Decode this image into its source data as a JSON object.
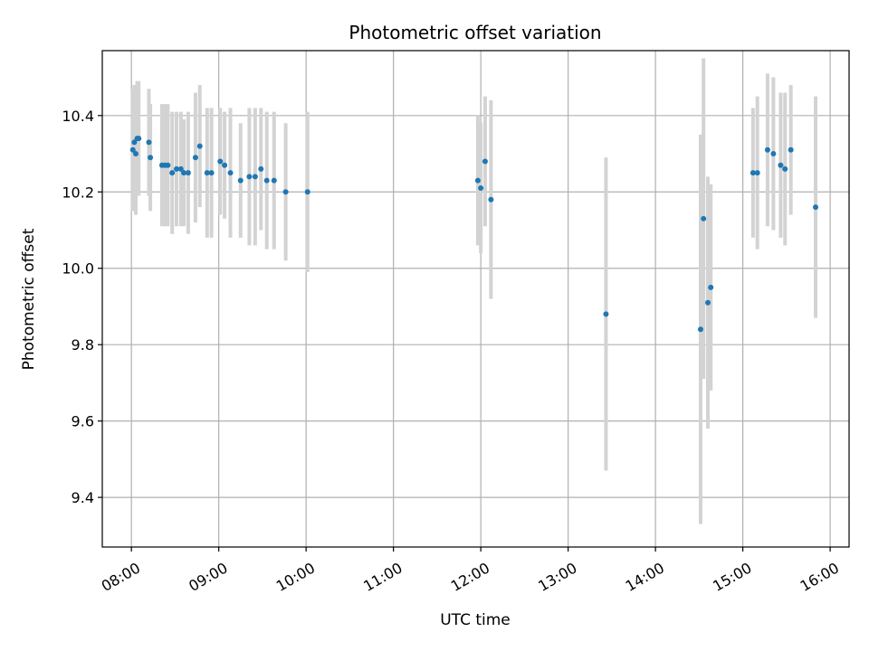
{
  "chart_data": {
    "type": "scatter",
    "title": "Photometric offset variation",
    "xlabel": "UTC time",
    "ylabel": "Photometric offset",
    "x_axis_type": "time",
    "xlim": [
      "07:40",
      "16:13"
    ],
    "ylim": [
      9.27,
      10.57
    ],
    "x_ticks": [
      "08:00",
      "09:00",
      "10:00",
      "11:00",
      "12:00",
      "13:00",
      "14:00",
      "15:00",
      "16:00"
    ],
    "y_ticks": [
      "9.4",
      "9.6",
      "9.8",
      "10.0",
      "10.2",
      "10.4"
    ],
    "grid": true,
    "colors": {
      "point": "#1f77b4",
      "errorbar": "#d3d3d3",
      "grid": "#b0b0b0"
    },
    "series": [
      {
        "x": [
          "08:01",
          "08:02",
          "08:03",
          "08:04",
          "08:05",
          "08:12",
          "08:13",
          "08:21",
          "08:23",
          "08:25",
          "08:28",
          "08:31",
          "08:34",
          "08:36",
          "08:39",
          "08:44",
          "08:47",
          "08:52",
          "08:55",
          "09:01",
          "09:04",
          "09:08",
          "09:15",
          "09:21",
          "09:25",
          "09:29",
          "09:33",
          "09:38",
          "09:46",
          "10:01"
        ],
        "y": [
          10.31,
          10.33,
          10.3,
          10.34,
          10.34,
          10.33,
          10.29,
          10.27,
          10.27,
          10.27,
          10.25,
          10.26,
          10.26,
          10.25,
          10.25,
          10.29,
          10.32,
          10.25,
          10.25,
          10.28,
          10.27,
          10.25,
          10.23,
          10.24,
          10.24,
          10.26,
          10.23,
          10.23,
          10.2,
          10.2
        ],
        "err": [
          0.16,
          0.15,
          0.16,
          0.15,
          0.15,
          0.14,
          0.14,
          0.16,
          0.16,
          0.16,
          0.16,
          0.15,
          0.15,
          0.14,
          0.16,
          0.17,
          0.16,
          0.17,
          0.17,
          0.14,
          0.14,
          0.17,
          0.15,
          0.18,
          0.18,
          0.16,
          0.18,
          0.18,
          0.18,
          0.21
        ]
      },
      {
        "x": [
          "11:58",
          "12:00",
          "12:03",
          "12:07"
        ],
        "y": [
          10.23,
          10.21,
          10.28,
          10.18
        ],
        "err": [
          0.17,
          0.17,
          0.17,
          0.26
        ]
      },
      {
        "x": [
          "13:26"
        ],
        "y": [
          9.88
        ],
        "err": [
          0.41
        ]
      },
      {
        "x": [
          "14:31",
          "14:33",
          "14:36",
          "14:38"
        ],
        "y": [
          9.84,
          10.13,
          9.91,
          9.95
        ],
        "err": [
          0.51,
          0.42,
          0.33,
          0.27
        ]
      },
      {
        "x": [
          "15:07",
          "15:10",
          "15:17",
          "15:21",
          "15:26",
          "15:29",
          "15:33",
          "15:50"
        ],
        "y": [
          10.25,
          10.25,
          10.31,
          10.3,
          10.27,
          10.26,
          10.31,
          10.16
        ],
        "err": [
          0.17,
          0.2,
          0.2,
          0.2,
          0.19,
          0.2,
          0.17,
          0.29
        ]
      }
    ]
  }
}
